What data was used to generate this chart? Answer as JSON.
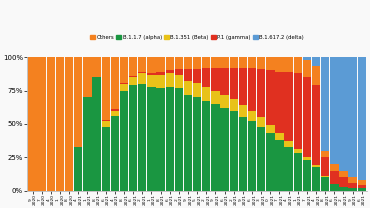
{
  "x_labels": [
    "9\n2020",
    "7\n2020",
    "4\n2020",
    "1\n2020",
    "8\n2020",
    "4\n2021",
    "1\n2021",
    "8\n2021",
    "6\n2021",
    "4\n2021",
    "8\n2021",
    "6\n2021",
    "2\n2021",
    "1\n2021",
    "8\n2021",
    "6\n2021",
    "2\n2021",
    "9\n2021",
    "5\n2021",
    "2\n2021",
    "9\n2021",
    "6\n2021",
    "2\n2021",
    "9\n2021",
    "6\n2021",
    "3\n2021",
    "0\n2021",
    "7\n2021",
    "4\n2021",
    "1\n2021",
    "7\n2021",
    "4\n2021",
    "8\n2021",
    "6\n2021",
    "2\n2021",
    "9\n2021",
    "6\n2021"
  ],
  "alpha": [
    0,
    0,
    0,
    0,
    0,
    33,
    70,
    85,
    48,
    56,
    75,
    79,
    80,
    78,
    77,
    78,
    77,
    72,
    70,
    67,
    65,
    62,
    60,
    55,
    52,
    48,
    43,
    38,
    33,
    28,
    23,
    18,
    10,
    5,
    3,
    2,
    2
  ],
  "beta": [
    0,
    0,
    0,
    0,
    0,
    0,
    0,
    0,
    4,
    4,
    5,
    6,
    8,
    9,
    10,
    10,
    10,
    10,
    11,
    11,
    10,
    10,
    9,
    9,
    8,
    7,
    6,
    5,
    4,
    3,
    2,
    1,
    1,
    0,
    0,
    0,
    0
  ],
  "gamma": [
    0,
    0,
    0,
    0,
    0,
    0,
    0,
    0,
    1,
    1,
    1,
    1,
    1,
    1,
    2,
    2,
    4,
    9,
    10,
    14,
    17,
    20,
    23,
    28,
    32,
    36,
    41,
    46,
    52,
    57,
    60,
    60,
    14,
    10,
    7,
    4,
    2
  ],
  "others": [
    100,
    100,
    100,
    100,
    100,
    67,
    30,
    15,
    47,
    39,
    19,
    14,
    11,
    12,
    11,
    10,
    9,
    9,
    9,
    8,
    8,
    8,
    8,
    8,
    8,
    9,
    10,
    11,
    11,
    12,
    13,
    14,
    5,
    5,
    5,
    4,
    4
  ],
  "delta": [
    0,
    0,
    0,
    0,
    0,
    0,
    0,
    0,
    0,
    0,
    0,
    0,
    0,
    0,
    0,
    0,
    0,
    0,
    0,
    0,
    0,
    0,
    0,
    0,
    0,
    0,
    0,
    0,
    0,
    0,
    2,
    7,
    70,
    80,
    85,
    90,
    92
  ],
  "colors": {
    "alpha": "#1A9641",
    "beta": "#E8C219",
    "gamma": "#E03020",
    "others": "#F4811F",
    "delta": "#5B9BD5"
  },
  "legend_labels": [
    "Others",
    "B.1.1.7 (alpha)",
    "B.1.351 (Beta)",
    "P.1 (gamma)",
    "B.1.617.2 (delta)"
  ],
  "legend_colors_order": [
    "others",
    "alpha",
    "beta",
    "gamma",
    "delta"
  ],
  "bg_color": "#f9f9f9",
  "yticks": [
    0,
    25,
    50,
    75,
    100
  ],
  "ytick_labels": [
    "0%",
    "25%",
    "50%",
    "75%",
    "100%"
  ]
}
